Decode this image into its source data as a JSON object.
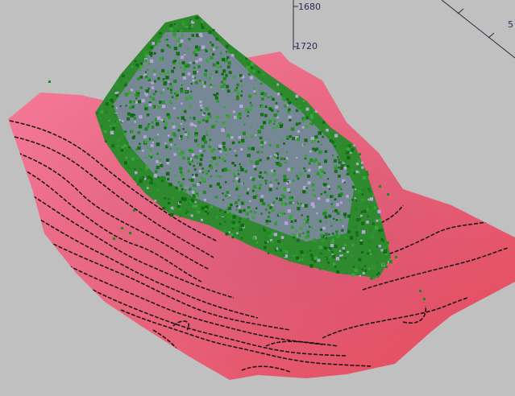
{
  "viewer": {
    "axis_ticks": {
      "vertical_upper": "1680",
      "vertical_lower": "1720",
      "right_edge": "5"
    },
    "colors": {
      "background": "#c0c0c0",
      "terrain_light": "#f27a9a",
      "terrain_dark": "#e8485a",
      "contour": "#111111",
      "canopy_green": "#1f8a1f",
      "canopy_lavender": "#b6a6d8",
      "axis_line": "#2a2a40"
    }
  }
}
